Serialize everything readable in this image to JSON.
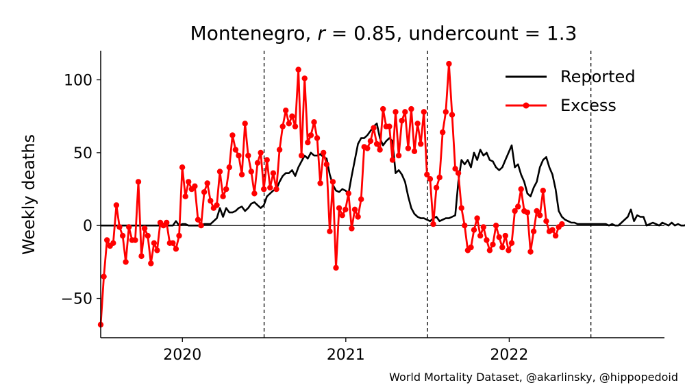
{
  "chart_data": {
    "type": "line",
    "title": "Montenegro, r = 0.85, undercount = 1.3",
    "title_parts": {
      "country": "Montenegro, ",
      "r_symbol": "r",
      "r_value": " = 0.85, undercount = 1.3"
    },
    "xlabel": "",
    "ylabel": "Weekly deaths",
    "xlim": [
      2019.5,
      2022.95
    ],
    "ylim": [
      -77,
      120
    ],
    "x_ticks": [
      {
        "value": 2020.0,
        "label": "2020"
      },
      {
        "value": 2021.0,
        "label": "2021"
      },
      {
        "value": 2022.0,
        "label": "2022"
      }
    ],
    "y_ticks": [
      {
        "value": -50,
        "label": "−50"
      },
      {
        "value": 0,
        "label": "0"
      },
      {
        "value": 50,
        "label": "50"
      },
      {
        "value": 100,
        "label": "100"
      }
    ],
    "vlines": [
      2020.5,
      2021.5,
      2022.5
    ],
    "zero_line": true,
    "legend_position": "top-right",
    "footer": "World Mortality Dataset, @akarlinsky, @hippopedoid",
    "series": [
      {
        "name": "Reported",
        "color": "#000000",
        "start": 2019.5,
        "step": 0.0192,
        "values": [
          0,
          0,
          0,
          0,
          0,
          0,
          0,
          0,
          0,
          0,
          0,
          0,
          0,
          0,
          0,
          0,
          0,
          0,
          0,
          0,
          0,
          0,
          0,
          0,
          3,
          0,
          1,
          1,
          0,
          0,
          0,
          0,
          0,
          1,
          1,
          1,
          3,
          5,
          12,
          6,
          12,
          9,
          9,
          10,
          12,
          13,
          10,
          12,
          15,
          16,
          14,
          12,
          14,
          20,
          22,
          24,
          25,
          30,
          34,
          36,
          36,
          38,
          34,
          40,
          44,
          48,
          46,
          50,
          48,
          48,
          49,
          47,
          46,
          35,
          28,
          24,
          23,
          25,
          24,
          22,
          34,
          45,
          56,
          60,
          60,
          62,
          65,
          68,
          70,
          60,
          55,
          58,
          60,
          58,
          36,
          38,
          35,
          30,
          20,
          12,
          8,
          6,
          5,
          5,
          4,
          3,
          5,
          6,
          3,
          4,
          5,
          5,
          6,
          7,
          30,
          45,
          42,
          45,
          40,
          50,
          45,
          52,
          48,
          50,
          45,
          44,
          40,
          38,
          40,
          45,
          50,
          55,
          40,
          42,
          35,
          30,
          22,
          20,
          26,
          30,
          40,
          45,
          47,
          40,
          35,
          25,
          10,
          6,
          4,
          3,
          2,
          2,
          1,
          1,
          1,
          1,
          1,
          1,
          1,
          1,
          1,
          1,
          0,
          1,
          0,
          0,
          2,
          4,
          6,
          11,
          3,
          7,
          6,
          6,
          0,
          1,
          2,
          1,
          0,
          2,
          1,
          0,
          2,
          0,
          1,
          0,
          0,
          1,
          0,
          2,
          1,
          0,
          3,
          1,
          1,
          2,
          1,
          0,
          3,
          2,
          0,
          0,
          0,
          0,
          0
        ]
      },
      {
        "name": "Excess",
        "color": "#ff0000",
        "start": 2019.5,
        "step": 0.0192,
        "values": [
          -68,
          -35,
          -10,
          -14,
          -12,
          14,
          -1,
          -7,
          -25,
          -1,
          -10,
          -10,
          30,
          -21,
          -2,
          -7,
          -26,
          -12,
          -17,
          2,
          0,
          2,
          -12,
          -12,
          -16,
          -7,
          40,
          20,
          30,
          25,
          27,
          4,
          0,
          23,
          29,
          17,
          12,
          14,
          37,
          20,
          25,
          40,
          62,
          52,
          48,
          35,
          70,
          48,
          37,
          22,
          43,
          50,
          25,
          45,
          26,
          36,
          25,
          52,
          68,
          79,
          70,
          75,
          68,
          107,
          48,
          101,
          57,
          62,
          71,
          60,
          29,
          50,
          42,
          -4,
          30,
          -29,
          12,
          7,
          11,
          22,
          -2,
          11,
          6,
          18,
          54,
          53,
          58,
          67,
          56,
          52,
          80,
          68,
          68,
          45,
          78,
          48,
          72,
          78,
          53,
          80,
          51,
          70,
          56,
          78,
          35,
          32,
          1,
          26,
          33,
          64,
          78,
          111,
          76,
          39,
          36,
          12,
          0,
          -17,
          -15,
          -3,
          5,
          -7,
          -1,
          -10,
          -17,
          -13,
          0,
          -8,
          -15,
          -7,
          -17,
          -12,
          10,
          13,
          25,
          10,
          9,
          -18,
          -4,
          10,
          7,
          24,
          3,
          -4,
          -3,
          -7,
          -1,
          1
        ]
      }
    ]
  }
}
